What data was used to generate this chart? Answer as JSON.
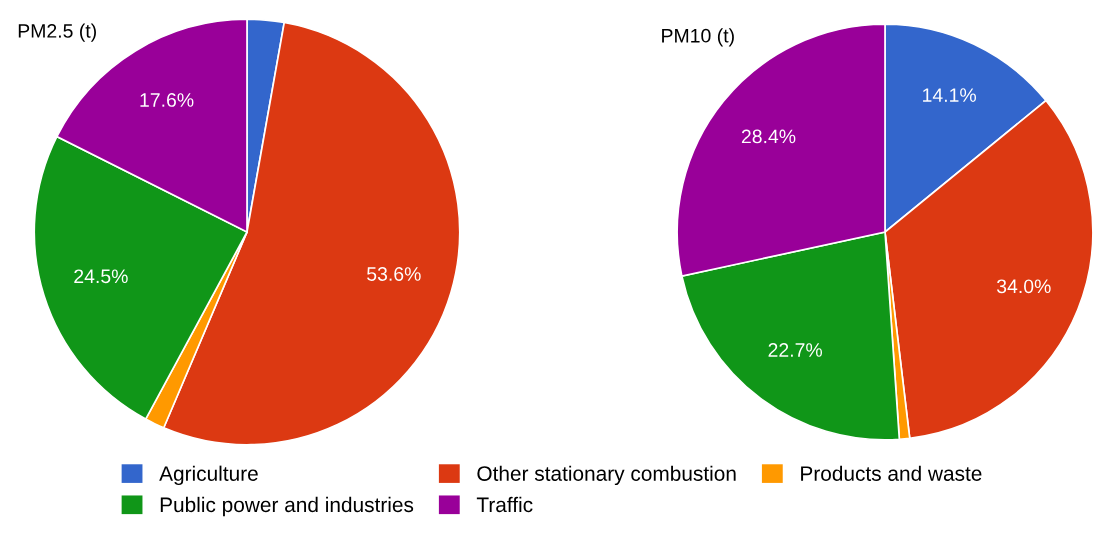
{
  "chart_data": [
    {
      "type": "pie",
      "title": "PM2.5 (t)",
      "categories": [
        "Agriculture",
        "Other stationary combustion",
        "Products and waste",
        "Public power and industries",
        "Traffic"
      ],
      "values": [
        2.8,
        53.6,
        1.5,
        24.5,
        17.6
      ],
      "colors": [
        "#3366cc",
        "#dc3912",
        "#ff9900",
        "#109618",
        "#990099"
      ],
      "value_labels": [
        null,
        "53.6%",
        null,
        "24.5%",
        "17.6%"
      ],
      "legend": "bottom"
    },
    {
      "type": "pie",
      "title": "PM10 (t)",
      "categories": [
        null,
        null,
        null,
        null,
        null
      ],
      "values": [
        14.1,
        34.0,
        0.8,
        22.7,
        28.4
      ],
      "colors": [
        "#3366cc",
        "#dc3912",
        "#ff9900",
        "#109618",
        "#990099"
      ],
      "value_labels": [
        "14.1%",
        "34.0%",
        null,
        "22.7%",
        "28.4%"
      ]
    }
  ]
}
